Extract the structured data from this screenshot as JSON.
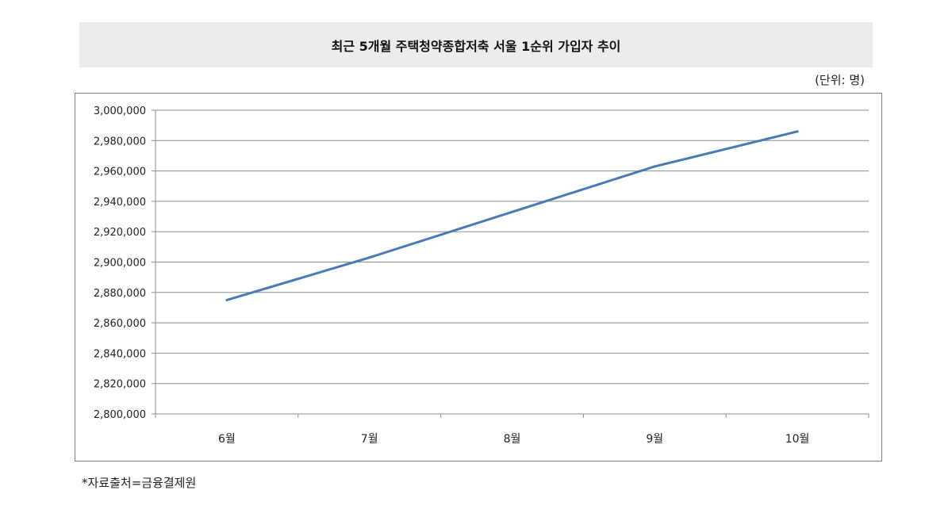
{
  "chart_data": {
    "type": "line",
    "title": "최근 5개월 주택청약종합저축 서울 1순위 가입자 추이",
    "unit_label": "(단위: 명)",
    "categories": [
      "6월",
      "7월",
      "8월",
      "9월",
      "10월"
    ],
    "series": [
      {
        "values": [
          2875000,
          2903000,
          2933000,
          2963000,
          2986000
        ]
      }
    ],
    "ylim": [
      2800000,
      3000000
    ],
    "yticks": [
      "2,800,000",
      "2,820,000",
      "2,840,000",
      "2,860,000",
      "2,880,000",
      "2,900,000",
      "2,920,000",
      "2,940,000",
      "2,960,000",
      "2,980,000",
      "3,000,000"
    ],
    "ytick_values": [
      2800000,
      2820000,
      2840000,
      2860000,
      2880000,
      2900000,
      2920000,
      2940000,
      2960000,
      2980000,
      3000000
    ],
    "grid": true,
    "legend": "none",
    "line_color": "#4a7ab5"
  },
  "source_note": "*자료출처=금융결제원"
}
